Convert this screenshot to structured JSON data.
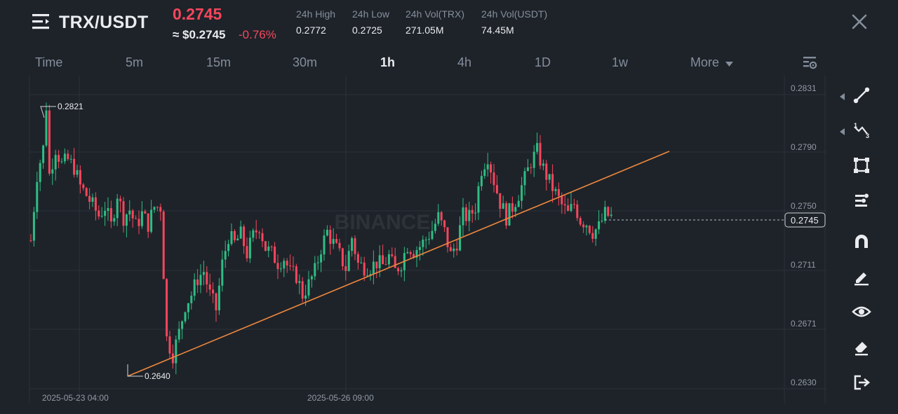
{
  "header": {
    "pair": "TRX/USDT",
    "last_price": "0.2745",
    "usd_price": "≈ $0.2745",
    "change": "-0.76%",
    "stats": [
      {
        "label": "24h High",
        "value": "0.2772"
      },
      {
        "label": "24h Low",
        "value": "0.2725"
      },
      {
        "label": "24h Vol(TRX)",
        "value": "271.05M"
      },
      {
        "label": "24h Vol(USDT)",
        "value": "74.45M"
      }
    ]
  },
  "timeframes": [
    "Time",
    "5m",
    "15m",
    "30m",
    "1h",
    "4h",
    "1D",
    "1w",
    "More"
  ],
  "active_timeframe": "1h",
  "tools": [
    "trend-line-icon",
    "fibonacci-icon",
    "rectangle-icon",
    "pattern-icon",
    "magnet-icon",
    "pencil-icon",
    "eye-icon",
    "eraser-icon",
    "exit-icon"
  ],
  "colors": {
    "up": "#2ebd85",
    "down": "#f6465d",
    "trendline": "#f0883e",
    "background": "#1e2329"
  },
  "chart_data": {
    "type": "candlestick",
    "interval": "1h",
    "y_ticks": [
      "0.2831",
      "0.2790",
      "0.2750",
      "0.2711",
      "0.2671",
      "0.2630"
    ],
    "x_ticks": [
      "2025-05-23 04:00",
      "2025-05-26 09:00"
    ],
    "current_price_label": "0.2745",
    "high_annotation": "0.2821",
    "low_annotation": "0.2640",
    "watermark": "BINANCE",
    "ylim": [
      0.263,
      0.2831
    ],
    "close_path": [
      [
        0,
        0.2727
      ],
      [
        2,
        0.2772
      ],
      [
        4,
        0.279
      ],
      [
        5,
        0.2819
      ],
      [
        6,
        0.2772
      ],
      [
        8,
        0.279
      ],
      [
        10,
        0.2779
      ],
      [
        12,
        0.2782
      ],
      [
        14,
        0.2777
      ],
      [
        16,
        0.2764
      ],
      [
        18,
        0.2758
      ],
      [
        20,
        0.2751
      ],
      [
        22,
        0.2744
      ],
      [
        24,
        0.275
      ],
      [
        26,
        0.2737
      ],
      [
        28,
        0.2759
      ],
      [
        30,
        0.2743
      ],
      [
        32,
        0.2748
      ],
      [
        34,
        0.2737
      ],
      [
        36,
        0.2745
      ],
      [
        38,
        0.2738
      ],
      [
        40,
        0.275
      ],
      [
        42,
        0.275
      ],
      [
        44,
        0.266
      ],
      [
        46,
        0.2649
      ],
      [
        48,
        0.2664
      ],
      [
        50,
        0.2683
      ],
      [
        52,
        0.269
      ],
      [
        54,
        0.2701
      ],
      [
        56,
        0.2706
      ],
      [
        58,
        0.269
      ],
      [
        60,
        0.268
      ],
      [
        62,
        0.2711
      ],
      [
        64,
        0.273
      ],
      [
        66,
        0.2725
      ],
      [
        68,
        0.2731
      ],
      [
        70,
        0.2718
      ],
      [
        72,
        0.273
      ],
      [
        74,
        0.2737
      ],
      [
        76,
        0.2722
      ],
      [
        78,
        0.2718
      ],
      [
        80,
        0.2712
      ],
      [
        82,
        0.2715
      ],
      [
        84,
        0.2705
      ],
      [
        86,
        0.2703
      ],
      [
        88,
        0.269
      ],
      [
        90,
        0.2697
      ],
      [
        92,
        0.2706
      ],
      [
        94,
        0.2722
      ],
      [
        96,
        0.2733
      ],
      [
        98,
        0.2725
      ],
      [
        100,
        0.2717
      ],
      [
        102,
        0.2708
      ],
      [
        104,
        0.2729
      ],
      [
        106,
        0.2711
      ],
      [
        108,
        0.2709
      ],
      [
        110,
        0.2709
      ],
      [
        112,
        0.2712
      ],
      [
        114,
        0.271
      ],
      [
        116,
        0.2716
      ],
      [
        118,
        0.2706
      ],
      [
        120,
        0.2712
      ],
      [
        122,
        0.2724
      ],
      [
        124,
        0.272
      ],
      [
        126,
        0.2723
      ],
      [
        128,
        0.2728
      ],
      [
        130,
        0.2734
      ],
      [
        132,
        0.2743
      ],
      [
        134,
        0.2733
      ],
      [
        136,
        0.2717
      ],
      [
        138,
        0.2726
      ],
      [
        140,
        0.2744
      ],
      [
        142,
        0.2743
      ],
      [
        144,
        0.275
      ],
      [
        146,
        0.2776
      ],
      [
        148,
        0.2785
      ],
      [
        150,
        0.2768
      ],
      [
        152,
        0.2753
      ],
      [
        154,
        0.2743
      ],
      [
        156,
        0.275
      ],
      [
        158,
        0.2759
      ],
      [
        160,
        0.2769
      ],
      [
        162,
        0.2781
      ],
      [
        164,
        0.2788
      ],
      [
        166,
        0.2776
      ],
      [
        168,
        0.2767
      ],
      [
        170,
        0.2759
      ],
      [
        172,
        0.2751
      ],
      [
        174,
        0.2745
      ],
      [
        176,
        0.2752
      ],
      [
        178,
        0.2741
      ],
      [
        180,
        0.2739
      ],
      [
        182,
        0.2733
      ],
      [
        184,
        0.2736
      ],
      [
        186,
        0.2745
      ],
      [
        188,
        0.2743
      ]
    ]
  }
}
